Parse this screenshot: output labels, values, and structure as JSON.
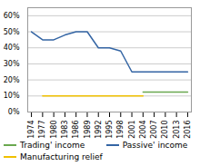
{
  "chart_data": {
    "type": "line",
    "x": [
      1974,
      1977,
      1980,
      1983,
      1986,
      1989,
      1992,
      1995,
      1998,
      2001,
      2004,
      2007,
      2010,
      2013,
      2016
    ],
    "series": [
      {
        "name": "Trading' income",
        "color": "#6aa84f",
        "values": [
          null,
          null,
          null,
          null,
          null,
          null,
          null,
          null,
          null,
          null,
          0.125,
          0.125,
          0.125,
          0.125,
          0.125
        ]
      },
      {
        "name": "Passive' income",
        "color": "#3465a4",
        "values": [
          0.5,
          0.45,
          0.45,
          0.48,
          0.5,
          0.5,
          0.4,
          0.4,
          0.38,
          0.25,
          0.25,
          0.25,
          0.25,
          0.25,
          0.25
        ]
      },
      {
        "name": "Manufacturing relief",
        "color": "#f0c000",
        "values": [
          null,
          0.1,
          0.1,
          0.1,
          0.1,
          0.1,
          0.1,
          0.1,
          0.1,
          0.1,
          0.1,
          null,
          null,
          null,
          null
        ]
      }
    ],
    "xlim": [
      1973,
      2017
    ],
    "xticks": [
      1974,
      1977,
      1980,
      1983,
      1986,
      1989,
      1992,
      1995,
      1998,
      2001,
      2004,
      2007,
      2010,
      2013,
      2016
    ],
    "ylim": [
      0,
      0.65
    ],
    "yticks": [
      {
        "value": 0.0,
        "label": "0%"
      },
      {
        "value": 0.1,
        "label": "10%"
      },
      {
        "value": 0.2,
        "label": "20%"
      },
      {
        "value": 0.3,
        "label": "30%"
      },
      {
        "value": 0.4,
        "label": "40%"
      },
      {
        "value": 0.5,
        "label": "50%"
      },
      {
        "value": 0.6,
        "label": "60%"
      }
    ],
    "grid": true,
    "legend": "bottom"
  }
}
